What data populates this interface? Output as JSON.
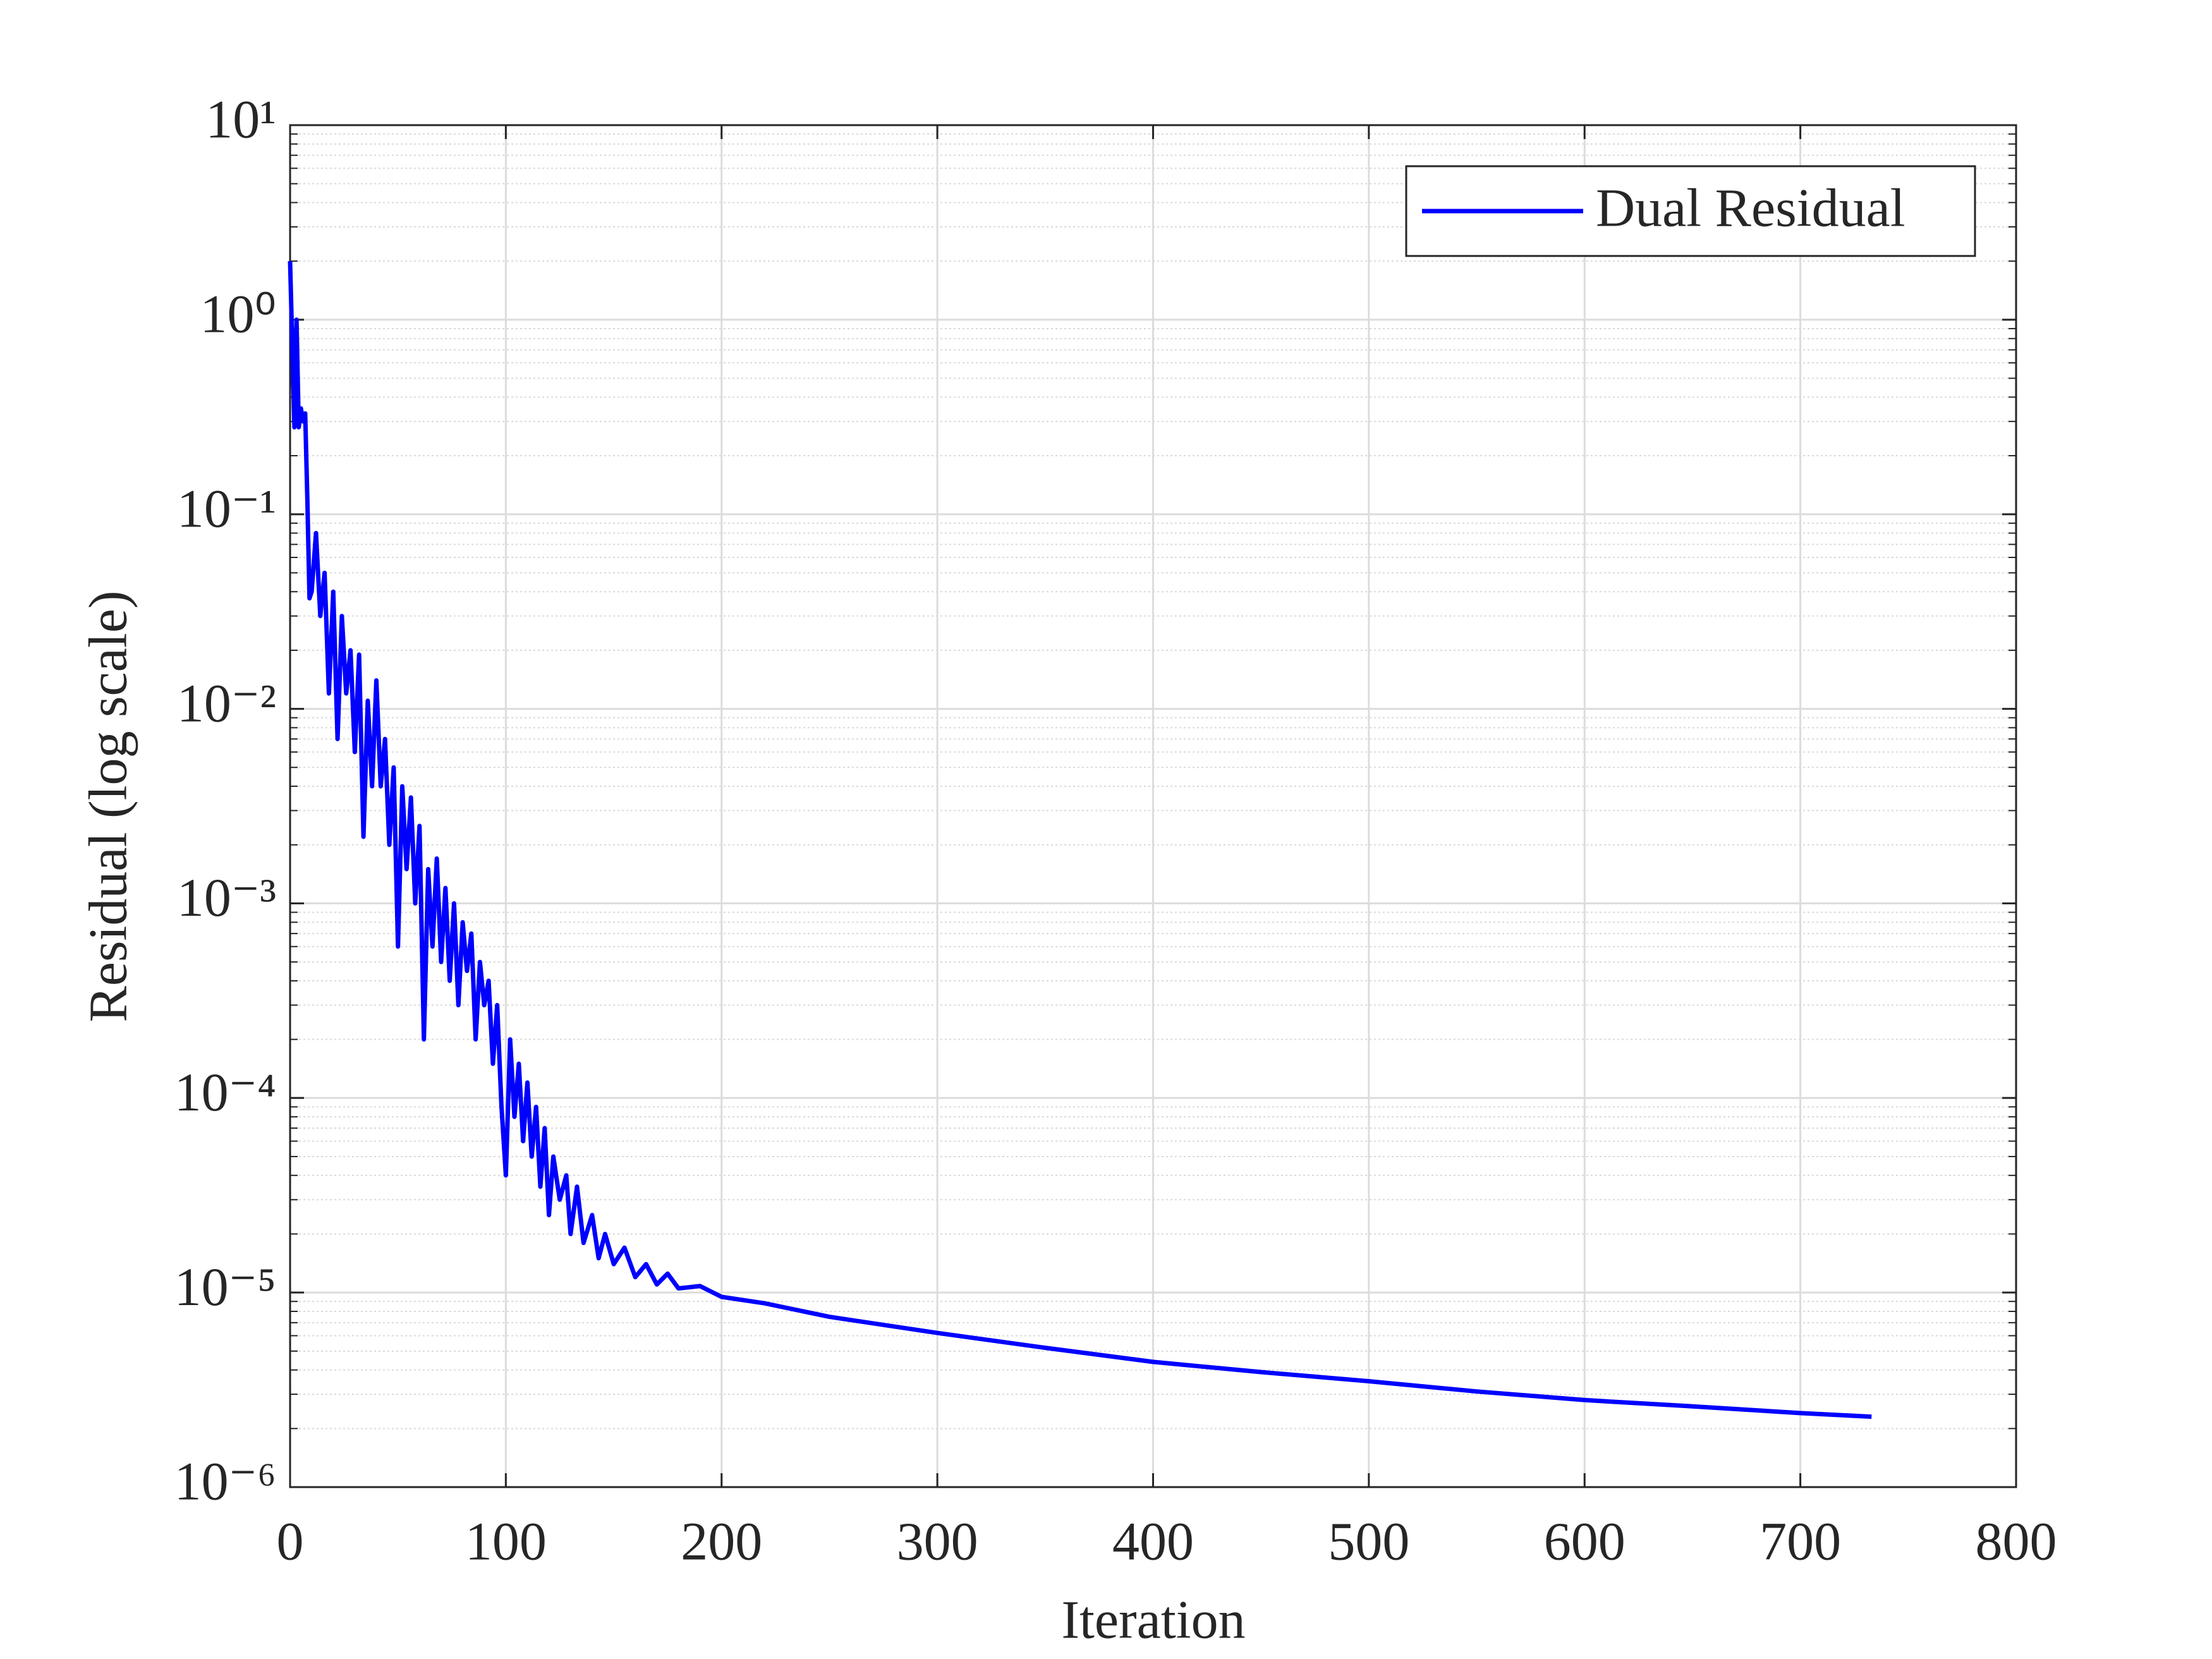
{
  "chart_data": {
    "type": "line",
    "xlabel": "Iteration",
    "ylabel": "Residual (log scale)",
    "x": [
      0,
      2,
      3,
      4,
      5,
      6,
      7,
      8,
      9,
      10,
      12,
      14,
      16,
      18,
      20,
      22,
      24,
      26,
      28,
      30,
      32,
      34,
      36,
      38,
      40,
      42,
      44,
      46,
      48,
      50,
      52,
      54,
      56,
      58,
      60,
      62,
      64,
      66,
      68,
      70,
      72,
      74,
      76,
      78,
      80,
      82,
      84,
      86,
      88,
      90,
      92,
      94,
      96,
      98,
      100,
      102,
      104,
      106,
      108,
      110,
      112,
      114,
      116,
      118,
      120,
      122,
      125,
      128,
      130,
      133,
      136,
      140,
      143,
      146,
      150,
      155,
      160,
      165,
      170,
      175,
      180,
      190,
      200,
      220,
      250,
      300,
      350,
      400,
      450,
      500,
      550,
      600,
      650,
      700,
      733
    ],
    "series": [
      {
        "name": "Dual Residual",
        "color": "#0000ff",
        "values": [
          2,
          0.28,
          1.0,
          0.28,
          0.35,
          0.3,
          0.33,
          0.12,
          0.037,
          0.04,
          0.08,
          0.03,
          0.05,
          0.012,
          0.04,
          0.007,
          0.03,
          0.012,
          0.02,
          0.006,
          0.019,
          0.0022,
          0.011,
          0.004,
          0.014,
          0.004,
          0.007,
          0.002,
          0.005,
          0.0006,
          0.004,
          0.0015,
          0.0035,
          0.001,
          0.0025,
          0.0002,
          0.0015,
          0.0006,
          0.0017,
          0.0005,
          0.0012,
          0.0004,
          0.001,
          0.0003,
          0.0008,
          0.00045,
          0.0007,
          0.0002,
          0.0005,
          0.0003,
          0.0004,
          0.00015,
          0.0003,
          9e-05,
          4e-05,
          0.0002,
          8e-05,
          0.00015,
          6e-05,
          0.00012,
          5e-05,
          9e-05,
          3.5e-05,
          7e-05,
          2.5e-05,
          5e-05,
          3e-05,
          4e-05,
          2e-05,
          3.5e-05,
          1.8e-05,
          2.5e-05,
          1.5e-05,
          2e-05,
          1.4e-05,
          1.7e-05,
          1.2e-05,
          1.4e-05,
          1.1e-05,
          1.25e-05,
          1.05e-05,
          1.08e-05,
          9.5e-06,
          8.8e-06,
          7.5e-06,
          6.2e-06,
          5.2e-06,
          4.4e-06,
          3.9e-06,
          3.5e-06,
          3.1e-06,
          2.8e-06,
          2.6e-06,
          2.4e-06,
          2.3e-06
        ]
      }
    ],
    "xlim": [
      0,
      800
    ],
    "xticks": [
      0,
      100,
      200,
      300,
      400,
      500,
      600,
      700,
      800
    ],
    "ylim": [
      1e-06,
      10
    ],
    "yticks": [
      {
        "value": 1e-06,
        "label": "10⁻⁶"
      },
      {
        "value": 1e-05,
        "label": "10⁻⁵"
      },
      {
        "value": 0.0001,
        "label": "10⁻⁴"
      },
      {
        "value": 0.001,
        "label": "10⁻³"
      },
      {
        "value": 0.01,
        "label": "10⁻²"
      },
      {
        "value": 0.1,
        "label": "10⁻¹"
      },
      {
        "value": 1,
        "label": "10⁰"
      },
      {
        "value": 10,
        "label": "10¹"
      }
    ],
    "yscale": "log",
    "grid": true,
    "minor_grid": true,
    "legend": "upper right"
  }
}
